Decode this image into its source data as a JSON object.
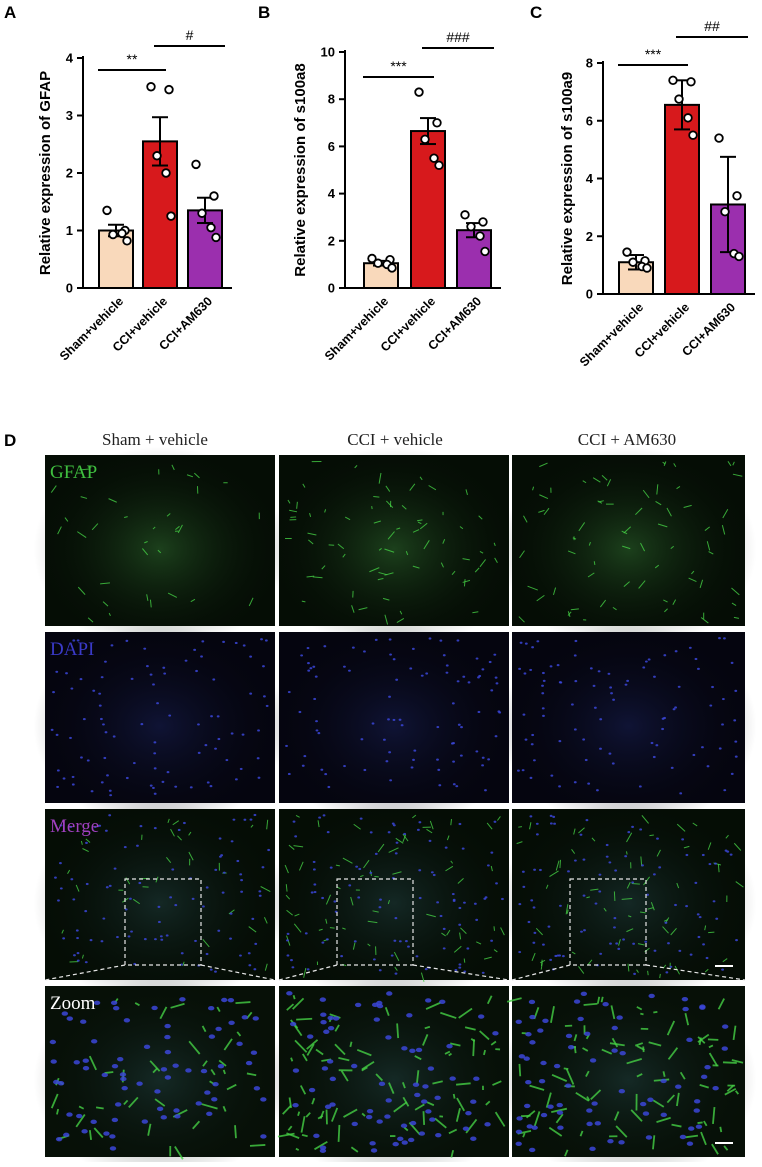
{
  "panels_top": {
    "A": "A",
    "B": "B",
    "C": "C",
    "D": "D"
  },
  "chart_data": [
    {
      "type": "bar",
      "panel": "A",
      "categories": [
        "Sham+vehicle",
        "CCI+vehicle",
        "CCI+AM630"
      ],
      "values": [
        1.0,
        2.55,
        1.35
      ],
      "errors": [
        0.1,
        0.42,
        0.22
      ],
      "points": [
        [
          1.35,
          1.0,
          0.93,
          0.95,
          0.82
        ],
        [
          3.5,
          3.45,
          2.3,
          2.0,
          1.25
        ],
        [
          2.15,
          1.6,
          1.3,
          1.05,
          0.88
        ]
      ],
      "colors": [
        "#f9d9bb",
        "#d7191c",
        "#9b2fae"
      ],
      "ylabel": "Relative expression of GFAP",
      "ylim": [
        0,
        4
      ],
      "yticks": [
        "0",
        "1",
        "2",
        "3",
        "4"
      ],
      "significance": [
        {
          "between": [
            0,
            1
          ],
          "label": "**"
        },
        {
          "between": [
            1,
            2
          ],
          "label": "#"
        }
      ]
    },
    {
      "type": "bar",
      "panel": "B",
      "categories": [
        "Sham+vehicle",
        "CCI+vehicle",
        "CCI+AM630"
      ],
      "values": [
        1.05,
        6.65,
        2.45
      ],
      "errors": [
        0.1,
        0.55,
        0.3
      ],
      "points": [
        [
          1.25,
          1.2,
          1.05,
          1.0,
          0.85
        ],
        [
          8.3,
          7.0,
          6.3,
          5.5,
          5.2
        ],
        [
          3.1,
          2.8,
          2.6,
          2.2,
          1.55
        ]
      ],
      "colors": [
        "#f9d9bb",
        "#d7191c",
        "#9b2fae"
      ],
      "ylabel": "Relative expression of s100a8",
      "ylim": [
        0,
        10
      ],
      "yticks": [
        "0",
        "2",
        "4",
        "6",
        "8",
        "10"
      ],
      "significance": [
        {
          "between": [
            0,
            1
          ],
          "label": "***"
        },
        {
          "between": [
            1,
            2
          ],
          "label": "###"
        }
      ]
    },
    {
      "type": "bar",
      "panel": "C",
      "categories": [
        "Sham+vehicle",
        "CCI+vehicle",
        "CCI+AM630"
      ],
      "values": [
        1.1,
        6.55,
        3.1
      ],
      "errors": [
        0.25,
        0.85,
        1.65
      ],
      "points": [
        [
          1.45,
          1.15,
          1.1,
          0.95,
          0.9
        ],
        [
          7.4,
          7.35,
          6.75,
          6.1,
          5.5
        ],
        [
          5.4,
          3.4,
          2.85,
          1.4,
          1.3
        ]
      ],
      "colors": [
        "#f9d9bb",
        "#d7191c",
        "#9b2fae"
      ],
      "ylabel": "Relative expression of s100a9",
      "ylim": [
        0,
        8
      ],
      "yticks": [
        "0",
        "2",
        "4",
        "6",
        "8"
      ],
      "significance": [
        {
          "between": [
            0,
            1
          ],
          "label": "***"
        },
        {
          "between": [
            1,
            2
          ],
          "label": "##"
        }
      ]
    }
  ],
  "micrograph": {
    "columns": [
      "Sham + vehicle",
      "CCI + vehicle",
      "CCI + AM630"
    ],
    "rows": [
      {
        "label": "GFAP",
        "color": "#3fbf3f"
      },
      {
        "label": "DAPI",
        "color": "#3a3ac8"
      },
      {
        "label": "Merge",
        "color": "#a040c0"
      },
      {
        "label": "Zoom",
        "color": "#ffffff"
      }
    ]
  }
}
